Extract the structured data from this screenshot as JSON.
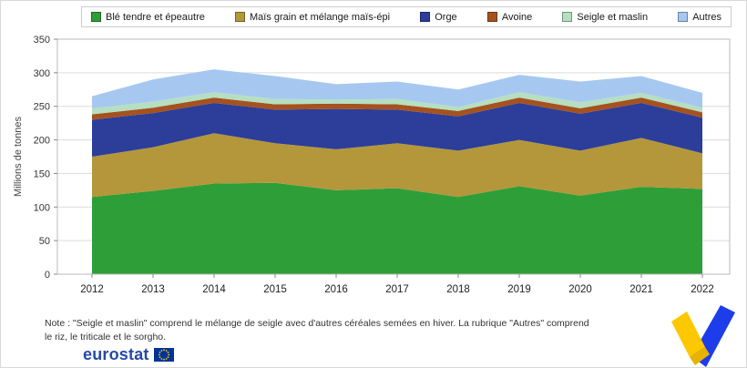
{
  "chart_data": {
    "type": "area",
    "stacked": true,
    "title": "",
    "ylabel": "Millions de tonnes",
    "xlabel": "",
    "ylim": [
      0,
      350
    ],
    "yticks": [
      0,
      50,
      100,
      150,
      200,
      250,
      300,
      350
    ],
    "grid": true,
    "legend_position": "top",
    "x": [
      2012,
      2013,
      2014,
      2015,
      2016,
      2017,
      2018,
      2019,
      2020,
      2021,
      2022
    ],
    "series": [
      {
        "name": "Blé tendre et épeautre",
        "color": "#2e9e39",
        "values": [
          115,
          124,
          135,
          136,
          125,
          128,
          115,
          131,
          117,
          130,
          127
        ]
      },
      {
        "name": "Maïs grain et mélange maïs-épi",
        "color": "#b3973a",
        "values": [
          60,
          65,
          75,
          59,
          61,
          67,
          69,
          69,
          67,
          73,
          53
        ]
      },
      {
        "name": "Orge",
        "color": "#2c3e99",
        "values": [
          55,
          51,
          45,
          50,
          60,
          50,
          51,
          55,
          55,
          52,
          53
        ]
      },
      {
        "name": "Avoine",
        "color": "#a5521f",
        "values": [
          8,
          8,
          8,
          8,
          8,
          8,
          8,
          8,
          8,
          8,
          8
        ]
      },
      {
        "name": "Seigle et maslin",
        "color": "#b5dfc0",
        "values": [
          9,
          9,
          8,
          8,
          6,
          8,
          6,
          8,
          9,
          7,
          7
        ]
      },
      {
        "name": "Autres",
        "color": "#a6c8f0",
        "values": [
          18,
          33,
          34,
          34,
          23,
          26,
          26,
          26,
          31,
          25,
          22
        ]
      }
    ]
  },
  "note": "Note : \"Seigle et maslin\" comprend le mélange de seigle avec d'autres céréales semées en hiver. La rubrique \"Autres\" comprend le riz, le triticale et le sorgho.",
  "footer": {
    "logo_text": "eurostat"
  },
  "decor": {
    "flag_blue": "#003399",
    "star_yellow": "#ffcc00",
    "logo_blue": "#2649a8",
    "ribbon_yellow": "#fdc800",
    "ribbon_blue": "#1d3dea"
  }
}
